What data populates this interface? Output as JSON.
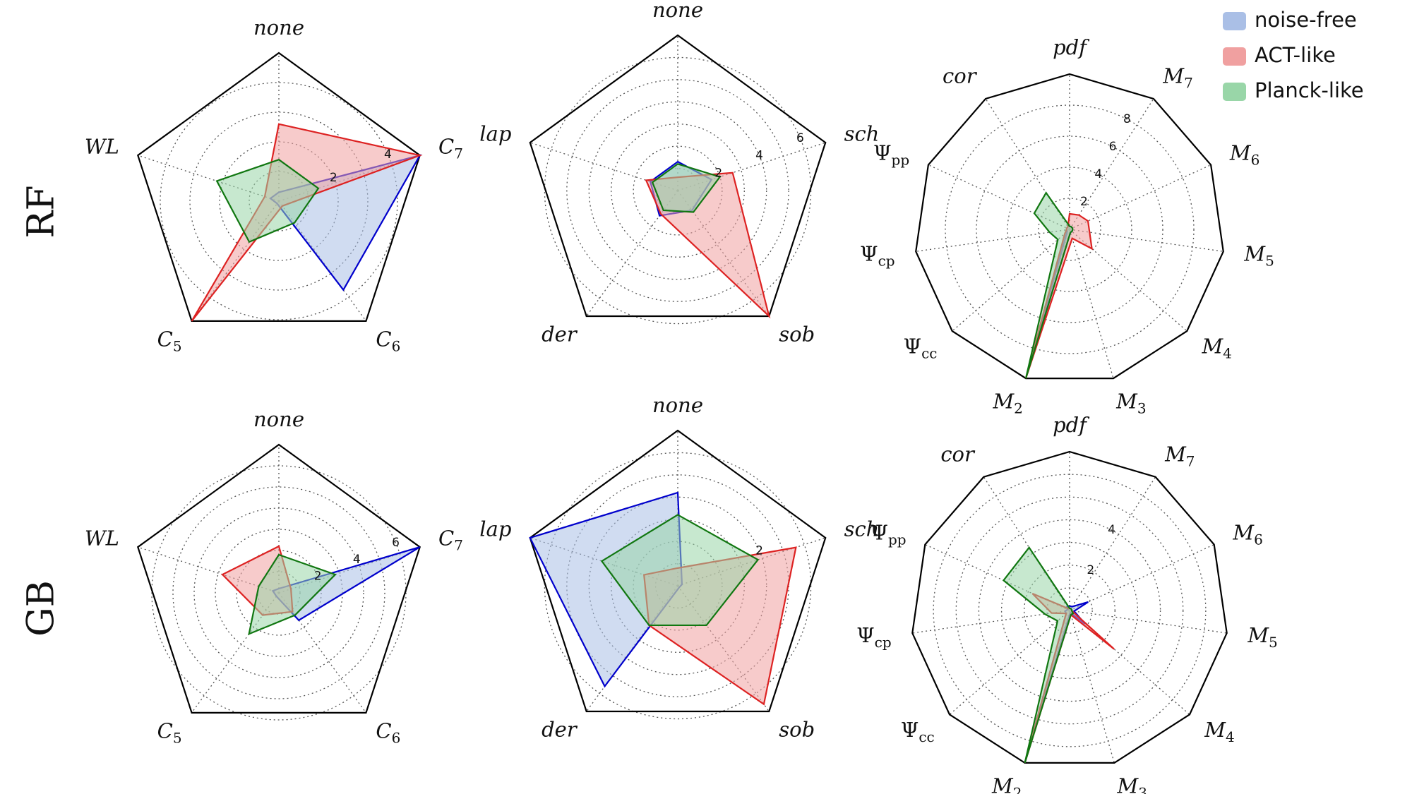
{
  "figure": {
    "row_labels": [
      "RF",
      "GB"
    ],
    "legend": {
      "location": "top-right",
      "entries": [
        {
          "name": "noise-free",
          "color": "#0000cc",
          "fill": "#aabfe6"
        },
        {
          "name": "ACT-like",
          "color": "#dd2222",
          "fill": "#f0a0a0"
        },
        {
          "name": "Planck-like",
          "color": "#117711",
          "fill": "#99d6a8"
        }
      ]
    }
  },
  "chart_data": [
    {
      "type": "radar",
      "row": "RF",
      "col": 1,
      "axes": [
        "none",
        "C_7",
        "C_6",
        "C_5",
        "WL"
      ],
      "rmax": 5,
      "rings": [
        1,
        2,
        3,
        4,
        5
      ],
      "tick_labels": [
        "2",
        "4"
      ],
      "tick_values": [
        2,
        4
      ],
      "series": [
        {
          "name": "noise-free",
          "values": [
            0.3,
            5.0,
            3.7,
            0.1,
            0.3
          ]
        },
        {
          "name": "ACT-like",
          "values": [
            2.6,
            5.0,
            0.2,
            5.0,
            0.5
          ]
        },
        {
          "name": "Planck-like",
          "values": [
            1.4,
            1.4,
            0.9,
            1.7,
            2.2
          ]
        }
      ]
    },
    {
      "type": "radar",
      "row": "RF",
      "col": 2,
      "axes": [
        "none",
        "sch",
        "sob",
        "der",
        "lap"
      ],
      "rmax": 7,
      "rings": [
        1,
        2,
        3,
        4,
        5,
        6,
        7
      ],
      "tick_labels": [
        "2",
        "4",
        "6"
      ],
      "tick_values": [
        2,
        4,
        6
      ],
      "series": [
        {
          "name": "noise-free",
          "values": [
            1.3,
            1.6,
            1.1,
            1.4,
            1.3
          ]
        },
        {
          "name": "ACT-like",
          "values": [
            0.6,
            2.6,
            7.0,
            1.3,
            1.5
          ]
        },
        {
          "name": "Planck-like",
          "values": [
            1.2,
            2.0,
            1.2,
            1.1,
            1.2
          ]
        }
      ]
    },
    {
      "type": "radar",
      "row": "RF",
      "col": 3,
      "axes": [
        "pdf",
        "M_7",
        "M_6",
        "M_5",
        "M_4",
        "M_3",
        "M_2",
        "Ψ_cc",
        "Ψ_cp",
        "Ψ_pp",
        "cor"
      ],
      "rmax": 10,
      "rings": [
        2,
        4,
        6,
        8,
        10
      ],
      "tick_labels": [
        "2",
        "4",
        "6",
        "8"
      ],
      "tick_values": [
        2,
        4,
        6,
        8
      ],
      "series": [
        {
          "name": "noise-free",
          "values": [
            0.2,
            0.2,
            0.2,
            0.2,
            0.2,
            0.2,
            9.8,
            0.2,
            0.2,
            0.2,
            0.2
          ]
        },
        {
          "name": "ACT-like",
          "values": [
            1.0,
            1.1,
            1.3,
            1.3,
            1.9,
            0.6,
            10.0,
            0.4,
            0.2,
            0.2,
            0.2
          ]
        },
        {
          "name": "Planck-like",
          "values": [
            0.2,
            0.2,
            0.2,
            0.2,
            0.2,
            0.2,
            10.0,
            1.0,
            1.3,
            2.5,
            2.8
          ]
        }
      ]
    },
    {
      "type": "radar",
      "row": "GB",
      "col": 1,
      "axes": [
        "none",
        "C_7",
        "C_6",
        "C_5",
        "WL"
      ],
      "rmax": 7,
      "rings": [
        1,
        2,
        3,
        4,
        5,
        6,
        7
      ],
      "tick_labels": [
        "2",
        "4",
        "6"
      ],
      "tick_values": [
        2,
        4,
        6
      ],
      "series": [
        {
          "name": "noise-free",
          "values": [
            0.2,
            7.0,
            1.6,
            0.2,
            0.3
          ]
        },
        {
          "name": "ACT-like",
          "values": [
            2.2,
            0.6,
            1.1,
            1.3,
            2.8
          ]
        },
        {
          "name": "Planck-like",
          "values": [
            1.8,
            2.8,
            1.3,
            2.4,
            1.0
          ]
        }
      ]
    },
    {
      "type": "radar",
      "row": "GB",
      "col": 2,
      "axes": [
        "none",
        "sch",
        "sob",
        "der",
        "lap"
      ],
      "rmax": 3.5,
      "rings": [
        0.5,
        1,
        1.5,
        2,
        2.5,
        3,
        3.5
      ],
      "tick_labels": [
        "2"
      ],
      "tick_values": [
        2
      ],
      "series": [
        {
          "name": "noise-free",
          "values": [
            2.1,
            0.1,
            0.05,
            2.8,
            3.5
          ]
        },
        {
          "name": "ACT-like",
          "values": [
            0.4,
            2.8,
            3.3,
            1.1,
            0.8
          ]
        },
        {
          "name": "Planck-like",
          "values": [
            1.6,
            1.9,
            1.1,
            1.1,
            1.8
          ]
        }
      ]
    },
    {
      "type": "radar",
      "row": "GB",
      "col": 3,
      "axes": [
        "pdf",
        "M_7",
        "M_6",
        "M_5",
        "M_4",
        "M_3",
        "M_2",
        "Ψ_cc",
        "Ψ_cp",
        "Ψ_pp",
        "cor"
      ],
      "rmax": 7,
      "rings": [
        1,
        2,
        3,
        4,
        5,
        6,
        7
      ],
      "tick_labels": [
        "2",
        "4"
      ],
      "tick_values": [
        2,
        4
      ],
      "series": [
        {
          "name": "noise-free",
          "values": [
            0.2,
            0.2,
            0.9,
            0.2,
            0.9,
            0.1,
            7.0,
            0.2,
            0.2,
            0.1,
            0.2
          ]
        },
        {
          "name": "ACT-like",
          "values": [
            0.1,
            0.1,
            0.1,
            0.1,
            2.6,
            0.2,
            7.0,
            0.2,
            0.8,
            1.8,
            0.1
          ]
        },
        {
          "name": "Planck-like",
          "values": [
            0.1,
            0.1,
            0.1,
            0.1,
            0.2,
            0.2,
            7.0,
            0.7,
            1.1,
            3.2,
            3.3
          ]
        }
      ]
    }
  ]
}
